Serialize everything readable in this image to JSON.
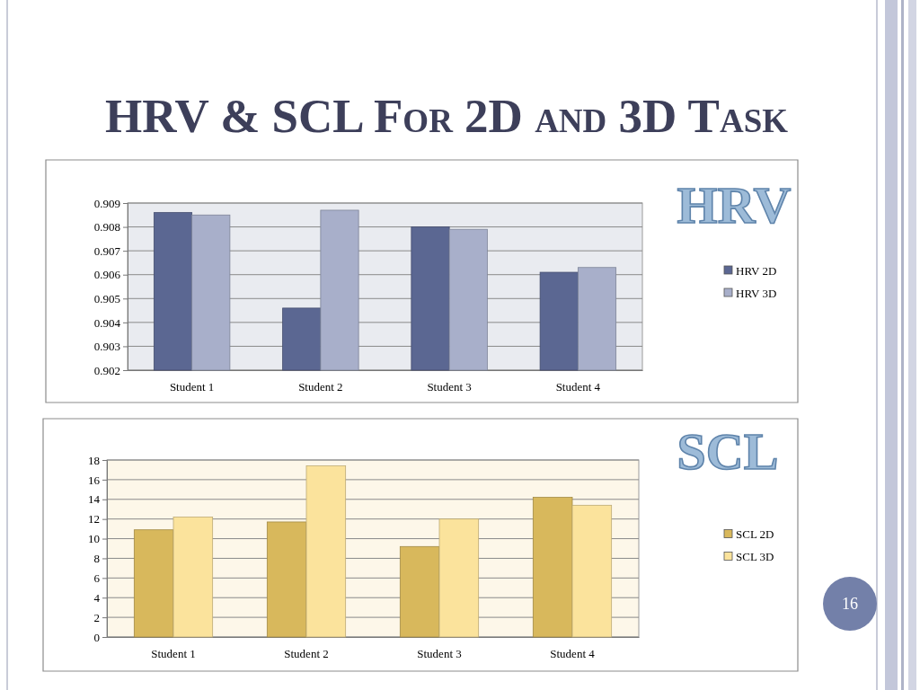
{
  "chart_data": [
    {
      "type": "bar",
      "title": "HRV & SCL For 2D and 3D Task",
      "annotations": [
        "HRV"
      ],
      "categories": [
        "Student 1",
        "Student 2",
        "Student 3",
        "Student 4"
      ],
      "series": [
        {
          "name": "HRV 2D",
          "color": "#5b6792",
          "values": [
            0.9086,
            0.9046,
            0.908,
            0.9061
          ]
        },
        {
          "name": "HRV 3D",
          "color": "#a8afca",
          "values": [
            0.9085,
            0.9087,
            0.9079,
            0.9063
          ]
        }
      ],
      "ylim": [
        0.902,
        0.909
      ],
      "yticks": [
        0.902,
        0.903,
        0.904,
        0.905,
        0.906,
        0.907,
        0.908,
        0.909
      ],
      "grid": "y",
      "legend": "right"
    },
    {
      "type": "bar",
      "annotations": [
        "SCL",
        "16"
      ],
      "categories": [
        "Student 1",
        "Student 2",
        "Student 3",
        "Student 4"
      ],
      "series": [
        {
          "name": "SCL 2D",
          "color": "#d8b85c",
          "values": [
            10.9,
            11.7,
            9.2,
            14.2
          ]
        },
        {
          "name": "SCL 3D",
          "color": "#fbe39c",
          "values": [
            12.2,
            17.4,
            12.0,
            13.4
          ]
        }
      ],
      "ylim": [
        0,
        18
      ],
      "yticks": [
        0,
        2,
        4,
        6,
        8,
        10,
        12,
        14,
        16,
        18
      ],
      "grid": "y",
      "legend": "right"
    }
  ]
}
